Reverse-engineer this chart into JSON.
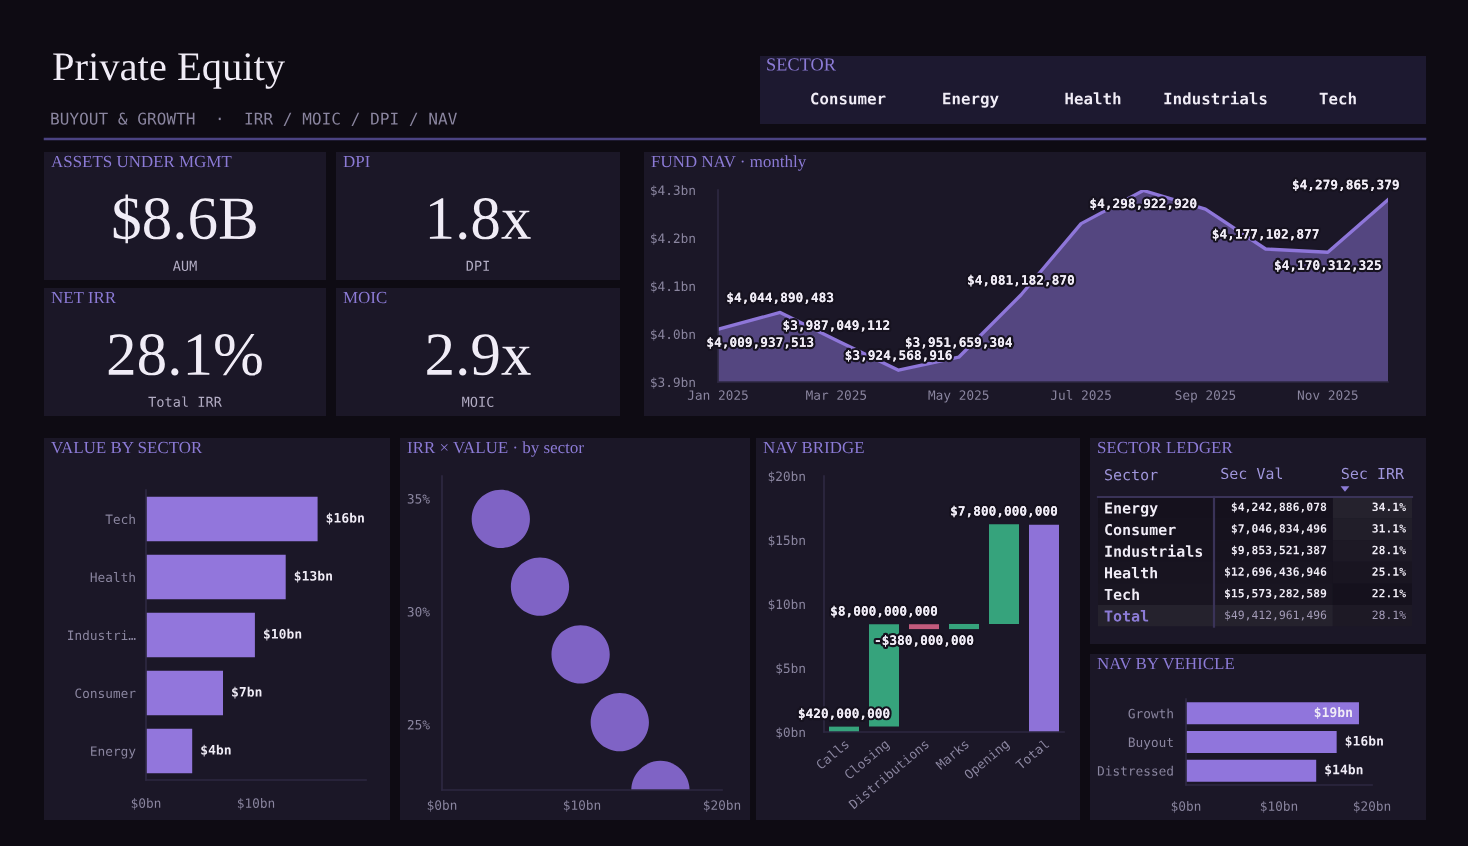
{
  "chart_data": [
    {
      "type": "other",
      "title": "Private Equity",
      "subtitle": "BUYOUT & GROWTH  ·  IRR / MOIC / DPI / NAV"
    },
    {
      "type": "other",
      "title": "SECTOR",
      "annotations": [
        "Consumer",
        "Energy",
        "Health",
        "Industrials",
        "Tech"
      ]
    },
    {
      "type": "other",
      "title": "ASSETS UNDER MGMT",
      "annotations": [
        "$8.6B",
        "AUM"
      ]
    },
    {
      "type": "other",
      "title": "DPI",
      "annotations": [
        "1.8x",
        "DPI"
      ]
    },
    {
      "type": "other",
      "title": "NET IRR",
      "annotations": [
        "28.1%",
        "Total IRR"
      ]
    },
    {
      "type": "other",
      "title": "MOIC",
      "annotations": [
        "2.9x",
        "MOIC"
      ]
    },
    {
      "type": "area",
      "title": "FUND NAV · monthly",
      "x": [
        "2025-01",
        "2025-02",
        "2025-03",
        "2025-04",
        "2025-05",
        "2025-06",
        "2025-07",
        "2025-08",
        "2025-09",
        "2025-10",
        "2025-11",
        "2025-12"
      ],
      "series": [
        {
          "color": "#8e76d9",
          "values": [
            4009937513,
            4044890483,
            3987049112,
            3924568916,
            3951659304,
            4081182870,
            4230000000,
            4298922920,
            4260000000,
            4177102877,
            4170312325,
            4279865379
          ],
          "value_labels": [
            "$4,009,937,513",
            "$4,044,890,483",
            "$3,987,049,112",
            "$3,924,568,916",
            "$3,951,659,304",
            "$4,081,182,870",
            null,
            "$4,298,922,920",
            null,
            "$4,177,102,877",
            "$4,170,312,325",
            "$4,279,865,379"
          ]
        }
      ],
      "xlim": [
        "2025-01",
        "2025-12"
      ],
      "xticks": [
        {
          "value": "2025-01",
          "label": "Jan 2025"
        },
        {
          "value": "2025-03",
          "label": "Mar 2025"
        },
        {
          "value": "2025-05",
          "label": "May 2025"
        },
        {
          "value": "2025-07",
          "label": "Jul 2025"
        },
        {
          "value": "2025-09",
          "label": "Sep 2025"
        },
        {
          "value": "2025-11",
          "label": "Nov 2025"
        }
      ],
      "ylim": [
        3900000000,
        4300000000
      ],
      "yticks": [
        {
          "value": 3900000000,
          "label": "$3.9bn"
        },
        {
          "value": 4000000000,
          "label": "$4.0bn"
        },
        {
          "value": 4100000000,
          "label": "$4.1bn"
        },
        {
          "value": 4200000000,
          "label": "$4.2bn"
        },
        {
          "value": 4300000000,
          "label": "$4.3bn"
        }
      ]
    },
    {
      "type": "bar",
      "title": "VALUE BY SECTOR",
      "orientation": "horizontal",
      "categories": [
        "Tech",
        "Health",
        "Industri…",
        "Consumer",
        "Energy"
      ],
      "values": [
        15.6,
        12.7,
        9.9,
        7.0,
        4.2
      ],
      "color": "#9276dc",
      "value_labels": [
        "$16bn",
        "$13bn",
        "$10bn",
        "$7bn",
        "$4bn"
      ],
      "xlim": [
        0,
        20
      ],
      "xticks": [
        {
          "value": 0,
          "label": "$0bn"
        },
        {
          "value": 10,
          "label": "$10bn"
        }
      ]
    },
    {
      "type": "bubble",
      "title": "IRR × VALUE · by sector",
      "x": [
        4.2,
        7.0,
        9.9,
        12.7,
        15.6
      ],
      "values": [
        34.1,
        31.1,
        28.1,
        25.1,
        22.1
      ],
      "sizes": [
        1,
        1,
        1,
        1,
        1
      ],
      "color": "#7f63c5",
      "xlim": [
        0,
        20
      ],
      "xticks": [
        {
          "value": 0,
          "label": "$0bn"
        },
        {
          "value": 10,
          "label": "$10bn"
        },
        {
          "value": 20,
          "label": "$20bn"
        }
      ],
      "ylim": [
        22.1,
        36
      ],
      "yticks": [
        {
          "value": 25,
          "label": "25%"
        },
        {
          "value": 30,
          "label": "30%"
        },
        {
          "value": 35,
          "label": "35%"
        }
      ]
    },
    {
      "type": "bar",
      "title": "NAV BRIDGE",
      "categories": [
        "Calls",
        "Closing",
        "Distributions",
        "Marks",
        "Opening",
        "Total"
      ],
      "values": [
        420000000,
        8000000000,
        -380000000,
        400000000,
        7800000000,
        16200000000
      ],
      "base": [
        0,
        420000000,
        8420000000,
        8040000000,
        8440000000,
        0
      ],
      "colors": [
        "#36a37c",
        "#36a37c",
        "#c25b7d",
        "#36a37c",
        "#36a37c",
        "#8e72d8"
      ],
      "value_labels": [
        "$420,000,000",
        "$8,000,000,000",
        "-$380,000,000",
        null,
        "$7,800,000,000",
        null
      ],
      "ylim": [
        0,
        20000000000
      ],
      "yticks": [
        {
          "value": 0,
          "label": "$0bn"
        },
        {
          "value": 5000000000,
          "label": "$5bn"
        },
        {
          "value": 10000000000,
          "label": "$10bn"
        },
        {
          "value": 15000000000,
          "label": "$15bn"
        },
        {
          "value": 20000000000,
          "label": "$20bn"
        }
      ]
    },
    {
      "type": "heatmap",
      "title": "SECTOR LEDGER",
      "ylabel": "Sector",
      "categories": [
        "Sec Val",
        "Sec IRR"
      ],
      "y_categories": [
        "Energy",
        "Consumer",
        "Industrials",
        "Health",
        "Tech",
        "Total"
      ],
      "cells": [
        [
          4242886078,
          34.1
        ],
        [
          7046834496,
          31.1
        ],
        [
          9853521387,
          28.1
        ],
        [
          12696436946,
          25.1
        ],
        [
          15573282589,
          22.1
        ],
        [
          49412961496,
          28.1
        ]
      ],
      "cell_labels": [
        [
          "$4,242,886,078",
          "34.1%"
        ],
        [
          "$7,046,834,496",
          "31.1%"
        ],
        [
          "$9,853,521,387",
          "28.1%"
        ],
        [
          "$12,696,436,946",
          "25.1%"
        ],
        [
          "$15,573,282,589",
          "22.1%"
        ],
        [
          "$49,412,961,496",
          "28.1%"
        ]
      ],
      "color": "#15111d"
    },
    {
      "type": "bar",
      "title": "NAV BY VEHICLE",
      "orientation": "horizontal",
      "categories": [
        "Growth",
        "Buyout",
        "Distressed"
      ],
      "values": [
        18.6,
        16.2,
        14.0
      ],
      "color": "#9075dc",
      "value_labels": [
        "$19bn",
        "$16bn",
        "$14bn"
      ],
      "xlim": [
        0,
        20
      ],
      "xticks": [
        {
          "value": 0,
          "label": "$0bn"
        },
        {
          "value": 10,
          "label": "$10bn"
        },
        {
          "value": 20,
          "label": "$20bn"
        }
      ]
    }
  ]
}
